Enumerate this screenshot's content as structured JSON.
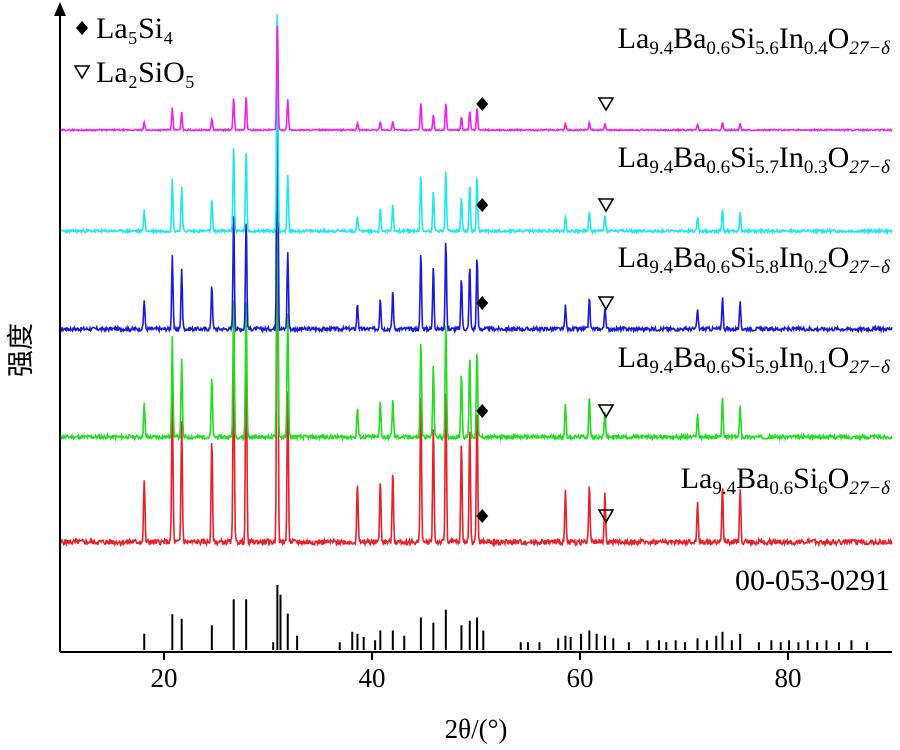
{
  "chart_data": {
    "type": "line",
    "xlabel": "2θ/(°)",
    "ylabel": "强度",
    "xlim": [
      10,
      90
    ],
    "xticks": [
      20,
      40,
      60,
      80
    ],
    "grid": false,
    "legend": [
      {
        "name": "La₅Si₄",
        "marker": "diamond"
      },
      {
        "name": "La₂SiO₅",
        "marker": "triangle-down"
      }
    ],
    "reference": {
      "label": "00-053-0291",
      "color": "#000000",
      "lines": [
        [
          18.1,
          0.25
        ],
        [
          20.8,
          0.55
        ],
        [
          21.7,
          0.48
        ],
        [
          24.6,
          0.38
        ],
        [
          26.7,
          0.78
        ],
        [
          27.9,
          0.78
        ],
        [
          30.5,
          0.12
        ],
        [
          30.9,
          1.0
        ],
        [
          31.2,
          0.85
        ],
        [
          31.9,
          0.56
        ],
        [
          32.8,
          0.22
        ],
        [
          36.9,
          0.12
        ],
        [
          38.1,
          0.28
        ],
        [
          38.6,
          0.25
        ],
        [
          39.2,
          0.2
        ],
        [
          40.3,
          0.15
        ],
        [
          40.8,
          0.3
        ],
        [
          42.0,
          0.3
        ],
        [
          43.1,
          0.22
        ],
        [
          44.7,
          0.5
        ],
        [
          45.9,
          0.42
        ],
        [
          47.1,
          0.62
        ],
        [
          48.6,
          0.38
        ],
        [
          49.4,
          0.45
        ],
        [
          50.1,
          0.5
        ],
        [
          50.7,
          0.3
        ],
        [
          54.3,
          0.12
        ],
        [
          55.0,
          0.12
        ],
        [
          56.1,
          0.12
        ],
        [
          57.9,
          0.18
        ],
        [
          58.6,
          0.22
        ],
        [
          59.1,
          0.2
        ],
        [
          60.1,
          0.25
        ],
        [
          60.9,
          0.3
        ],
        [
          61.6,
          0.25
        ],
        [
          62.4,
          0.22
        ],
        [
          63.2,
          0.18
        ],
        [
          64.7,
          0.12
        ],
        [
          66.5,
          0.15
        ],
        [
          67.6,
          0.15
        ],
        [
          68.3,
          0.12
        ],
        [
          69.2,
          0.15
        ],
        [
          70.1,
          0.12
        ],
        [
          71.3,
          0.18
        ],
        [
          72.2,
          0.15
        ],
        [
          73.1,
          0.22
        ],
        [
          73.7,
          0.28
        ],
        [
          74.6,
          0.15
        ],
        [
          75.4,
          0.25
        ],
        [
          77.2,
          0.12
        ],
        [
          78.4,
          0.15
        ],
        [
          79.3,
          0.12
        ],
        [
          80.1,
          0.15
        ],
        [
          81.0,
          0.12
        ],
        [
          81.9,
          0.15
        ],
        [
          82.8,
          0.12
        ],
        [
          83.7,
          0.15
        ],
        [
          84.9,
          0.12
        ],
        [
          86.1,
          0.15
        ],
        [
          87.6,
          0.12
        ]
      ]
    },
    "series": [
      {
        "name": "La9.4Ba0.6Si6O27−δ",
        "label": {
          "base": "La",
          "parts": [
            [
              "9.4",
              "Ba"
            ],
            [
              "0.6",
              "Si"
            ],
            [
              "6",
              "O"
            ],
            [
              "27−δ",
              ""
            ]
          ]
        },
        "color": "#e8202a",
        "noise_seed": 5,
        "peaks": [
          [
            18.1,
            0.14
          ],
          [
            20.8,
            0.33
          ],
          [
            21.7,
            0.27
          ],
          [
            24.6,
            0.23
          ],
          [
            26.7,
            0.45
          ],
          [
            27.9,
            0.47
          ],
          [
            30.9,
            1.0
          ],
          [
            31.9,
            0.33
          ],
          [
            38.6,
            0.13
          ],
          [
            40.8,
            0.14
          ],
          [
            42.0,
            0.16
          ],
          [
            44.7,
            0.33
          ],
          [
            45.9,
            0.26
          ],
          [
            47.1,
            0.35
          ],
          [
            48.6,
            0.22
          ],
          [
            49.4,
            0.26
          ],
          [
            50.1,
            0.3
          ],
          [
            58.6,
            0.11
          ],
          [
            60.9,
            0.13
          ],
          [
            62.4,
            0.11
          ],
          [
            71.3,
            0.09
          ],
          [
            73.7,
            0.13
          ],
          [
            75.4,
            0.12
          ]
        ],
        "markers": [
          {
            "x": 50.6,
            "type": "diamond"
          },
          {
            "x": 62.5,
            "type": "triangle-down"
          }
        ]
      },
      {
        "name": "La9.4Ba0.6Si5.9In0.1O27−δ",
        "label": {
          "base": "La",
          "parts": [
            [
              "9.4",
              "Ba"
            ],
            [
              "0.6",
              "Si"
            ],
            [
              "5.9",
              "In"
            ],
            [
              "0.1",
              "O"
            ],
            [
              "27−δ",
              ""
            ]
          ]
        },
        "color": "#22dd22",
        "noise_seed": 11,
        "peaks": [
          [
            18.1,
            0.1
          ],
          [
            20.8,
            0.3
          ],
          [
            21.7,
            0.24
          ],
          [
            24.6,
            0.18
          ],
          [
            26.7,
            0.43
          ],
          [
            27.9,
            0.43
          ],
          [
            30.9,
            1.0
          ],
          [
            31.9,
            0.38
          ],
          [
            38.6,
            0.09
          ],
          [
            40.8,
            0.11
          ],
          [
            42.0,
            0.12
          ],
          [
            44.7,
            0.3
          ],
          [
            45.9,
            0.22
          ],
          [
            47.1,
            0.35
          ],
          [
            48.6,
            0.2
          ],
          [
            49.4,
            0.25
          ],
          [
            50.1,
            0.27
          ],
          [
            58.6,
            0.1
          ],
          [
            60.9,
            0.12
          ],
          [
            62.4,
            0.08
          ],
          [
            71.3,
            0.07
          ],
          [
            73.7,
            0.12
          ],
          [
            75.4,
            0.1
          ]
        ],
        "markers": [
          {
            "x": 50.6,
            "type": "diamond"
          },
          {
            "x": 62.5,
            "type": "triangle-down"
          }
        ]
      },
      {
        "name": "La9.4Ba0.6Si5.8In0.2O27−δ",
        "label": {
          "base": "La",
          "parts": [
            [
              "9.4",
              "Ba"
            ],
            [
              "0.6",
              "Si"
            ],
            [
              "5.8",
              "In"
            ],
            [
              "0.2",
              "O"
            ],
            [
              "27−δ",
              ""
            ]
          ]
        },
        "color": "#1a1adc",
        "noise_seed": 17,
        "peaks": [
          [
            18.1,
            0.09
          ],
          [
            20.8,
            0.23
          ],
          [
            21.7,
            0.19
          ],
          [
            24.6,
            0.14
          ],
          [
            26.7,
            0.36
          ],
          [
            27.9,
            0.34
          ],
          [
            30.9,
            1.0
          ],
          [
            31.9,
            0.24
          ],
          [
            38.6,
            0.08
          ],
          [
            40.8,
            0.1
          ],
          [
            42.0,
            0.12
          ],
          [
            44.7,
            0.24
          ],
          [
            45.9,
            0.2
          ],
          [
            47.1,
            0.28
          ],
          [
            48.6,
            0.16
          ],
          [
            49.4,
            0.2
          ],
          [
            50.1,
            0.23
          ],
          [
            58.6,
            0.07
          ],
          [
            60.9,
            0.1
          ],
          [
            62.4,
            0.07
          ],
          [
            71.3,
            0.06
          ],
          [
            73.7,
            0.1
          ],
          [
            75.4,
            0.08
          ]
        ],
        "markers": [
          {
            "x": 50.6,
            "type": "diamond"
          },
          {
            "x": 62.5,
            "type": "triangle-down"
          }
        ]
      },
      {
        "name": "La9.4Ba0.6Si5.7In0.3O27−δ",
        "label": {
          "base": "La",
          "parts": [
            [
              "9.4",
              "Ba"
            ],
            [
              "0.6",
              "Si"
            ],
            [
              "5.7",
              "In"
            ],
            [
              "0.3",
              "O"
            ],
            [
              "27−δ",
              ""
            ]
          ]
        },
        "color": "#22e6ee",
        "noise_seed": 23,
        "peaks": [
          [
            18.1,
            0.09
          ],
          [
            20.8,
            0.23
          ],
          [
            21.7,
            0.2
          ],
          [
            24.6,
            0.14
          ],
          [
            26.7,
            0.38
          ],
          [
            27.9,
            0.36
          ],
          [
            30.9,
            1.0
          ],
          [
            31.9,
            0.25
          ],
          [
            38.6,
            0.07
          ],
          [
            40.8,
            0.1
          ],
          [
            42.0,
            0.12
          ],
          [
            44.7,
            0.25
          ],
          [
            45.9,
            0.18
          ],
          [
            47.1,
            0.27
          ],
          [
            48.6,
            0.15
          ],
          [
            49.4,
            0.2
          ],
          [
            50.1,
            0.24
          ],
          [
            58.6,
            0.07
          ],
          [
            60.9,
            0.09
          ],
          [
            62.4,
            0.07
          ],
          [
            71.3,
            0.06
          ],
          [
            73.7,
            0.1
          ],
          [
            75.4,
            0.08
          ]
        ],
        "markers": [
          {
            "x": 50.6,
            "type": "diamond"
          },
          {
            "x": 62.5,
            "type": "triangle-down"
          }
        ]
      },
      {
        "name": "La9.4Ba0.6Si5.6In0.4O27−δ",
        "label": {
          "base": "La",
          "parts": [
            [
              "9.4",
              "Ba"
            ],
            [
              "0.6",
              "Si"
            ],
            [
              "5.6",
              "In"
            ],
            [
              "0.4",
              "O"
            ],
            [
              "27−δ",
              ""
            ]
          ]
        },
        "color": "#ee22ee",
        "noise_seed": 29,
        "peaks": [
          [
            18.1,
            0.07
          ],
          [
            20.8,
            0.2
          ],
          [
            21.7,
            0.16
          ],
          [
            24.6,
            0.11
          ],
          [
            26.7,
            0.3
          ],
          [
            27.9,
            0.31
          ],
          [
            30.9,
            1.0
          ],
          [
            31.9,
            0.28
          ],
          [
            38.6,
            0.06
          ],
          [
            40.8,
            0.08
          ],
          [
            42.0,
            0.08
          ],
          [
            44.7,
            0.25
          ],
          [
            45.9,
            0.14
          ],
          [
            47.1,
            0.25
          ],
          [
            48.6,
            0.12
          ],
          [
            49.4,
            0.17
          ],
          [
            50.1,
            0.2
          ],
          [
            58.6,
            0.06
          ],
          [
            60.9,
            0.07
          ],
          [
            62.4,
            0.06
          ],
          [
            71.3,
            0.05
          ],
          [
            73.7,
            0.07
          ],
          [
            75.4,
            0.06
          ]
        ],
        "markers": [
          {
            "x": 50.6,
            "type": "diamond"
          },
          {
            "x": 62.5,
            "type": "triangle-down"
          }
        ]
      }
    ]
  }
}
